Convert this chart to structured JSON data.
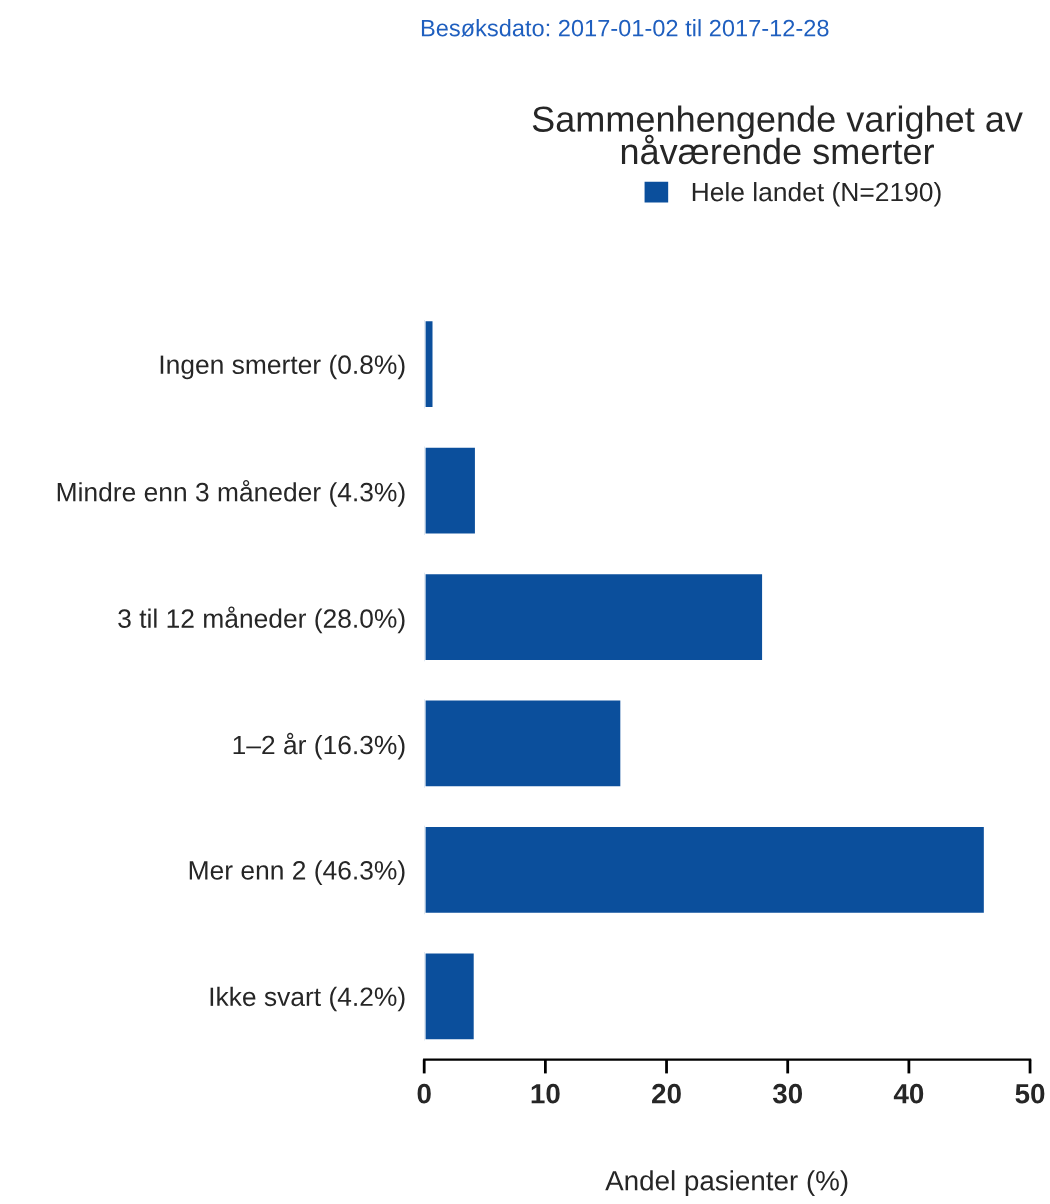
{
  "chart_data": {
    "type": "bar",
    "orientation": "horizontal",
    "title": "Sammenhengende varighet av\nnåværende smerter",
    "xlabel": "Andel pasienter (%)",
    "annotations": [
      "Besøksdato: 2017-01-02 til 2017-12-28"
    ],
    "categories": [
      "Ingen smerter (0.8%)",
      "Mindre enn 3 måneder (4.3%)",
      "3 til 12 måneder (28.0%)",
      "1–2 år (16.3%)",
      "Mer enn 2 (46.3%)",
      "Ikke svart (4.2%)"
    ],
    "series": [
      {
        "name": "Hele landet (N=2190)",
        "color": "#0b4f9c",
        "values": [
          0.8,
          4.3,
          28.0,
          16.3,
          46.3,
          4.2
        ]
      }
    ],
    "xlim": [
      0,
      50
    ],
    "xticks": [
      0,
      10,
      20,
      30,
      40,
      50
    ],
    "grid": false,
    "legend": "top right"
  }
}
